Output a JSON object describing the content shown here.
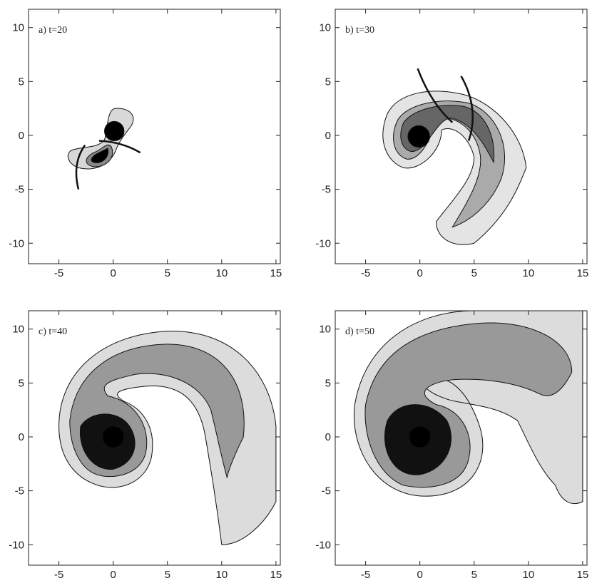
{
  "chart_data": [
    {
      "type": "contour",
      "label": "a) t=20",
      "xlim": [
        -7.8,
        15.4
      ],
      "ylim": [
        -11.9,
        11.7
      ],
      "xticks": [
        -5,
        0,
        5,
        10,
        15
      ],
      "yticks": [
        -10,
        -5,
        0,
        5,
        10
      ]
    },
    {
      "type": "contour",
      "label": "b) t=30",
      "xlim": [
        -7.8,
        15.4
      ],
      "ylim": [
        -11.9,
        11.7
      ],
      "xticks": [
        -5,
        0,
        5,
        10,
        15
      ],
      "yticks": [
        -10,
        -5,
        0,
        5,
        10
      ]
    },
    {
      "type": "contour",
      "label": "c) t=40",
      "xlim": [
        -7.8,
        15.4
      ],
      "ylim": [
        -11.9,
        11.7
      ],
      "xticks": [
        -5,
        0,
        5,
        10,
        15
      ],
      "yticks": [
        -10,
        -5,
        0,
        5,
        10
      ]
    },
    {
      "type": "contour",
      "label": "d) t=50",
      "xlim": [
        -7.8,
        15.4
      ],
      "ylim": [
        -11.9,
        11.7
      ],
      "xticks": [
        -5,
        0,
        5,
        10,
        15
      ],
      "yticks": [
        -10,
        -5,
        0,
        5,
        10
      ]
    }
  ]
}
